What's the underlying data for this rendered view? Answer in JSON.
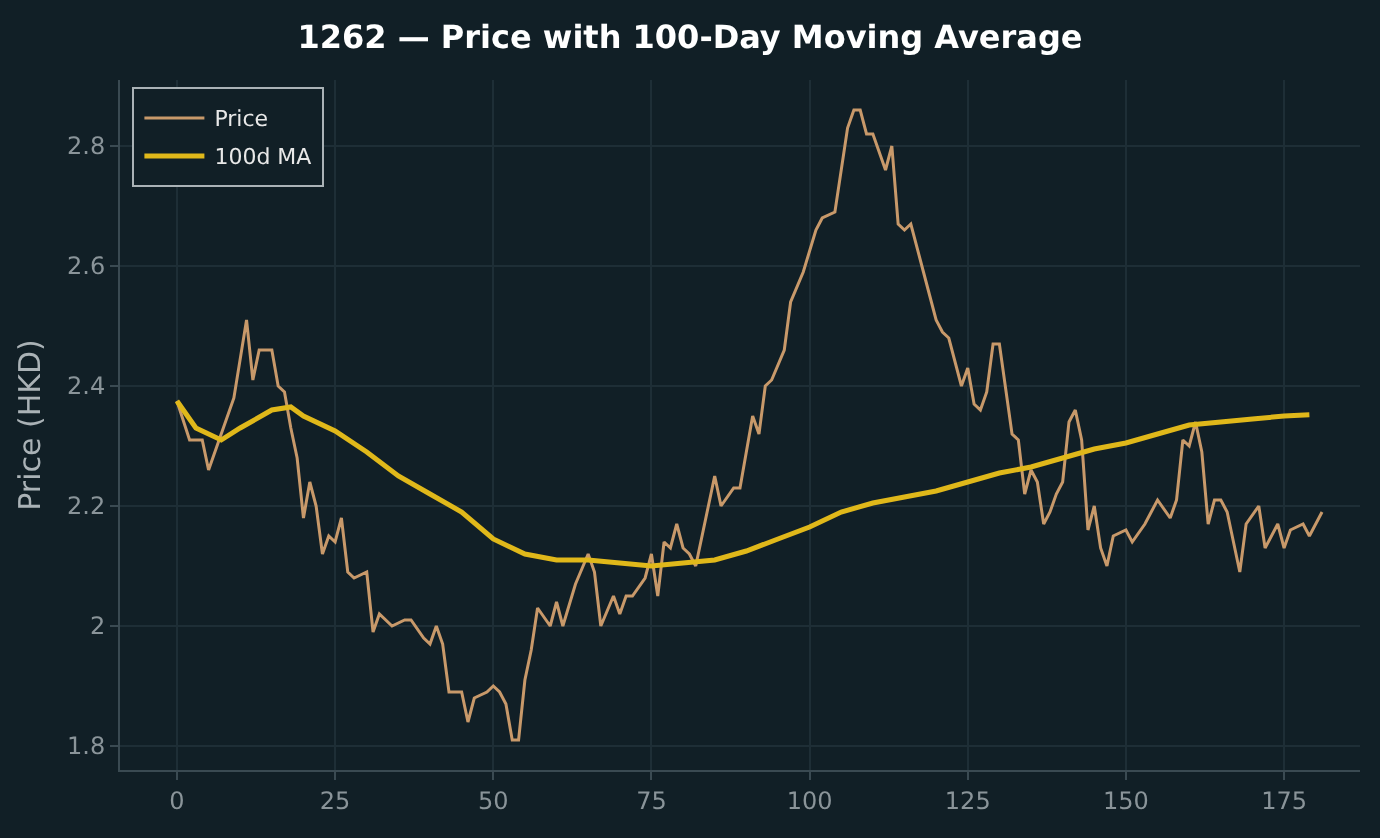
{
  "chart_data": {
    "type": "line",
    "title": "1262 — Price with 100-Day Moving Average",
    "ylabel": "Price (HKD)",
    "xlim": [
      -9,
      187
    ],
    "xticks": [
      0,
      25,
      50,
      75,
      100,
      125,
      150,
      175
    ],
    "ylim": [
      1.76,
      2.91
    ],
    "yticks": [
      1.8,
      2.0,
      2.2,
      2.4,
      2.6,
      2.8
    ],
    "grid": true,
    "legend": "top left",
    "series": [
      {
        "name": "Price",
        "color": "#c8996a",
        "x": [
          0,
          2,
          4,
          5,
          7,
          9,
          11,
          12,
          13,
          15,
          16,
          17,
          18,
          19,
          20,
          21,
          22,
          23,
          24,
          25,
          26,
          27,
          28,
          30,
          31,
          32,
          34,
          36,
          37,
          39,
          40,
          41,
          42,
          43,
          45,
          46,
          47,
          49,
          50,
          51,
          52,
          53,
          54,
          55,
          56,
          57,
          59,
          60,
          61,
          63,
          65,
          66,
          67,
          69,
          70,
          71,
          72,
          74,
          75,
          76,
          77,
          78,
          79,
          80,
          81,
          82,
          85,
          86,
          88,
          89,
          91,
          92,
          93,
          94,
          96,
          97,
          99,
          101,
          102,
          104,
          106,
          107,
          108,
          109,
          110,
          112,
          113,
          114,
          115,
          116,
          118,
          119,
          120,
          121,
          122,
          124,
          125,
          126,
          127,
          128,
          129,
          130,
          132,
          133,
          134,
          135,
          136,
          137,
          138,
          139,
          140,
          141,
          142,
          143,
          144,
          145,
          146,
          147,
          148,
          150,
          151,
          153,
          154,
          155,
          157,
          158,
          159,
          160,
          161,
          162,
          163,
          164,
          165,
          166,
          168,
          169,
          171,
          172,
          174,
          175,
          176,
          178,
          179,
          181
        ],
        "values": [
          2.375,
          2.31,
          2.31,
          2.26,
          2.32,
          2.38,
          2.51,
          2.41,
          2.46,
          2.46,
          2.4,
          2.39,
          2.33,
          2.28,
          2.18,
          2.24,
          2.2,
          2.12,
          2.15,
          2.14,
          2.18,
          2.09,
          2.08,
          2.09,
          1.99,
          2.02,
          2.0,
          2.01,
          2.01,
          1.98,
          1.97,
          2.0,
          1.97,
          1.89,
          1.89,
          1.84,
          1.88,
          1.89,
          1.9,
          1.89,
          1.87,
          1.81,
          1.81,
          1.91,
          1.96,
          2.03,
          2.0,
          2.04,
          2.0,
          2.07,
          2.12,
          2.09,
          2.0,
          2.05,
          2.02,
          2.05,
          2.05,
          2.08,
          2.12,
          2.05,
          2.14,
          2.13,
          2.17,
          2.13,
          2.12,
          2.1,
          2.25,
          2.2,
          2.23,
          2.23,
          2.35,
          2.32,
          2.4,
          2.41,
          2.46,
          2.54,
          2.59,
          2.66,
          2.68,
          2.69,
          2.83,
          2.86,
          2.86,
          2.82,
          2.82,
          2.76,
          2.8,
          2.67,
          2.66,
          2.67,
          2.59,
          2.55,
          2.51,
          2.49,
          2.48,
          2.4,
          2.43,
          2.37,
          2.36,
          2.39,
          2.47,
          2.47,
          2.32,
          2.31,
          2.22,
          2.26,
          2.24,
          2.17,
          2.19,
          2.22,
          2.24,
          2.34,
          2.36,
          2.31,
          2.16,
          2.2,
          2.13,
          2.1,
          2.15,
          2.16,
          2.14,
          2.17,
          2.19,
          2.21,
          2.18,
          2.21,
          2.31,
          2.3,
          2.34,
          2.29,
          2.17,
          2.21,
          2.21,
          2.19,
          2.09,
          2.17,
          2.2,
          2.13,
          2.17,
          2.13,
          2.16,
          2.17,
          2.15,
          2.19
        ]
      },
      {
        "name": "100d MA",
        "color": "#e0b81a",
        "x": [
          0,
          3,
          7,
          10,
          15,
          18,
          20,
          25,
          30,
          35,
          40,
          45,
          50,
          55,
          60,
          65,
          70,
          75,
          80,
          85,
          90,
          95,
          100,
          105,
          110,
          115,
          120,
          125,
          130,
          135,
          140,
          145,
          150,
          155,
          160,
          165,
          170,
          175,
          179
        ],
        "values": [
          2.375,
          2.33,
          2.31,
          2.33,
          2.36,
          2.365,
          2.35,
          2.325,
          2.29,
          2.25,
          2.22,
          2.19,
          2.145,
          2.12,
          2.11,
          2.11,
          2.105,
          2.1,
          2.105,
          2.11,
          2.125,
          2.145,
          2.165,
          2.19,
          2.205,
          2.215,
          2.225,
          2.24,
          2.255,
          2.265,
          2.28,
          2.295,
          2.305,
          2.32,
          2.335,
          2.34,
          2.345,
          2.35,
          2.352
        ]
      }
    ]
  }
}
